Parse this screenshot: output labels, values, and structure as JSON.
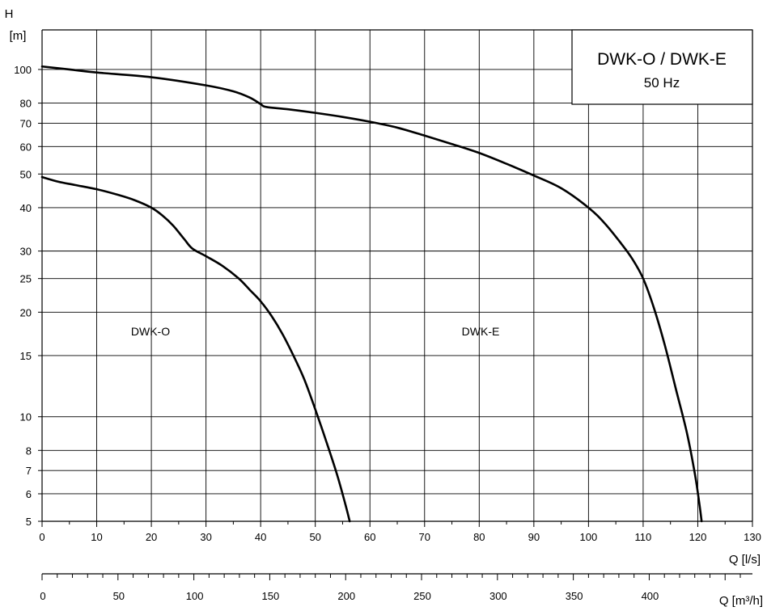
{
  "chart_data": {
    "type": "line",
    "title": "DWK-O / DWK-E",
    "subtitle": "50 Hz",
    "ylabel_top": "H",
    "ylabel_unit": "[m]",
    "xlabel": "Q [l/s]",
    "x2label": "Q [m³/h]",
    "y_scale": "log",
    "xlim": [
      0,
      130
    ],
    "ylim": [
      5,
      130
    ],
    "x_ticks": [
      0,
      10,
      20,
      30,
      40,
      50,
      60,
      70,
      80,
      90,
      100,
      110,
      120,
      130
    ],
    "y_ticks": [
      5,
      6,
      7,
      8,
      10,
      15,
      20,
      25,
      30,
      40,
      50,
      60,
      70,
      80,
      100
    ],
    "x2_ticks": [
      0,
      50,
      100,
      150,
      200,
      250,
      300,
      350,
      400
    ],
    "x2_minor_step": 10,
    "x2_max": 468,
    "grid": true,
    "series": [
      {
        "name": "DWK-O",
        "points": [
          [
            0,
            49
          ],
          [
            3,
            47.5
          ],
          [
            6,
            46.5
          ],
          [
            10,
            45.2
          ],
          [
            14,
            43.5
          ],
          [
            17,
            42
          ],
          [
            20,
            40
          ],
          [
            22,
            38
          ],
          [
            24,
            35.5
          ],
          [
            26,
            32.5
          ],
          [
            27.5,
            30.5
          ],
          [
            30,
            29
          ],
          [
            33,
            27.2
          ],
          [
            36,
            25
          ],
          [
            38,
            23.2
          ],
          [
            40,
            21.5
          ],
          [
            42,
            19.5
          ],
          [
            44,
            17.3
          ],
          [
            46,
            15
          ],
          [
            48,
            12.8
          ],
          [
            50,
            10.5
          ],
          [
            52,
            8.5
          ],
          [
            54,
            6.8
          ],
          [
            55.5,
            5.6
          ],
          [
            56.3,
            5
          ]
        ]
      },
      {
        "name": "DWK-E",
        "points": [
          [
            0,
            102
          ],
          [
            5,
            100
          ],
          [
            10,
            98
          ],
          [
            20,
            95
          ],
          [
            30,
            90
          ],
          [
            35,
            86.5
          ],
          [
            38,
            83
          ],
          [
            40,
            79.5
          ],
          [
            41,
            78
          ],
          [
            45,
            76.8
          ],
          [
            50,
            75
          ],
          [
            55,
            73
          ],
          [
            60,
            70.7
          ],
          [
            65,
            68
          ],
          [
            70,
            64.5
          ],
          [
            75,
            61
          ],
          [
            80,
            57.5
          ],
          [
            85,
            53.5
          ],
          [
            90,
            49.5
          ],
          [
            95,
            45.5
          ],
          [
            100,
            40
          ],
          [
            103,
            36
          ],
          [
            106,
            31.5
          ],
          [
            108,
            28.5
          ],
          [
            110,
            25
          ],
          [
            112,
            20.5
          ],
          [
            114,
            16
          ],
          [
            116,
            12
          ],
          [
            118,
            9
          ],
          [
            119.5,
            6.8
          ],
          [
            120.3,
            5.6
          ],
          [
            120.7,
            5
          ]
        ]
      }
    ]
  }
}
